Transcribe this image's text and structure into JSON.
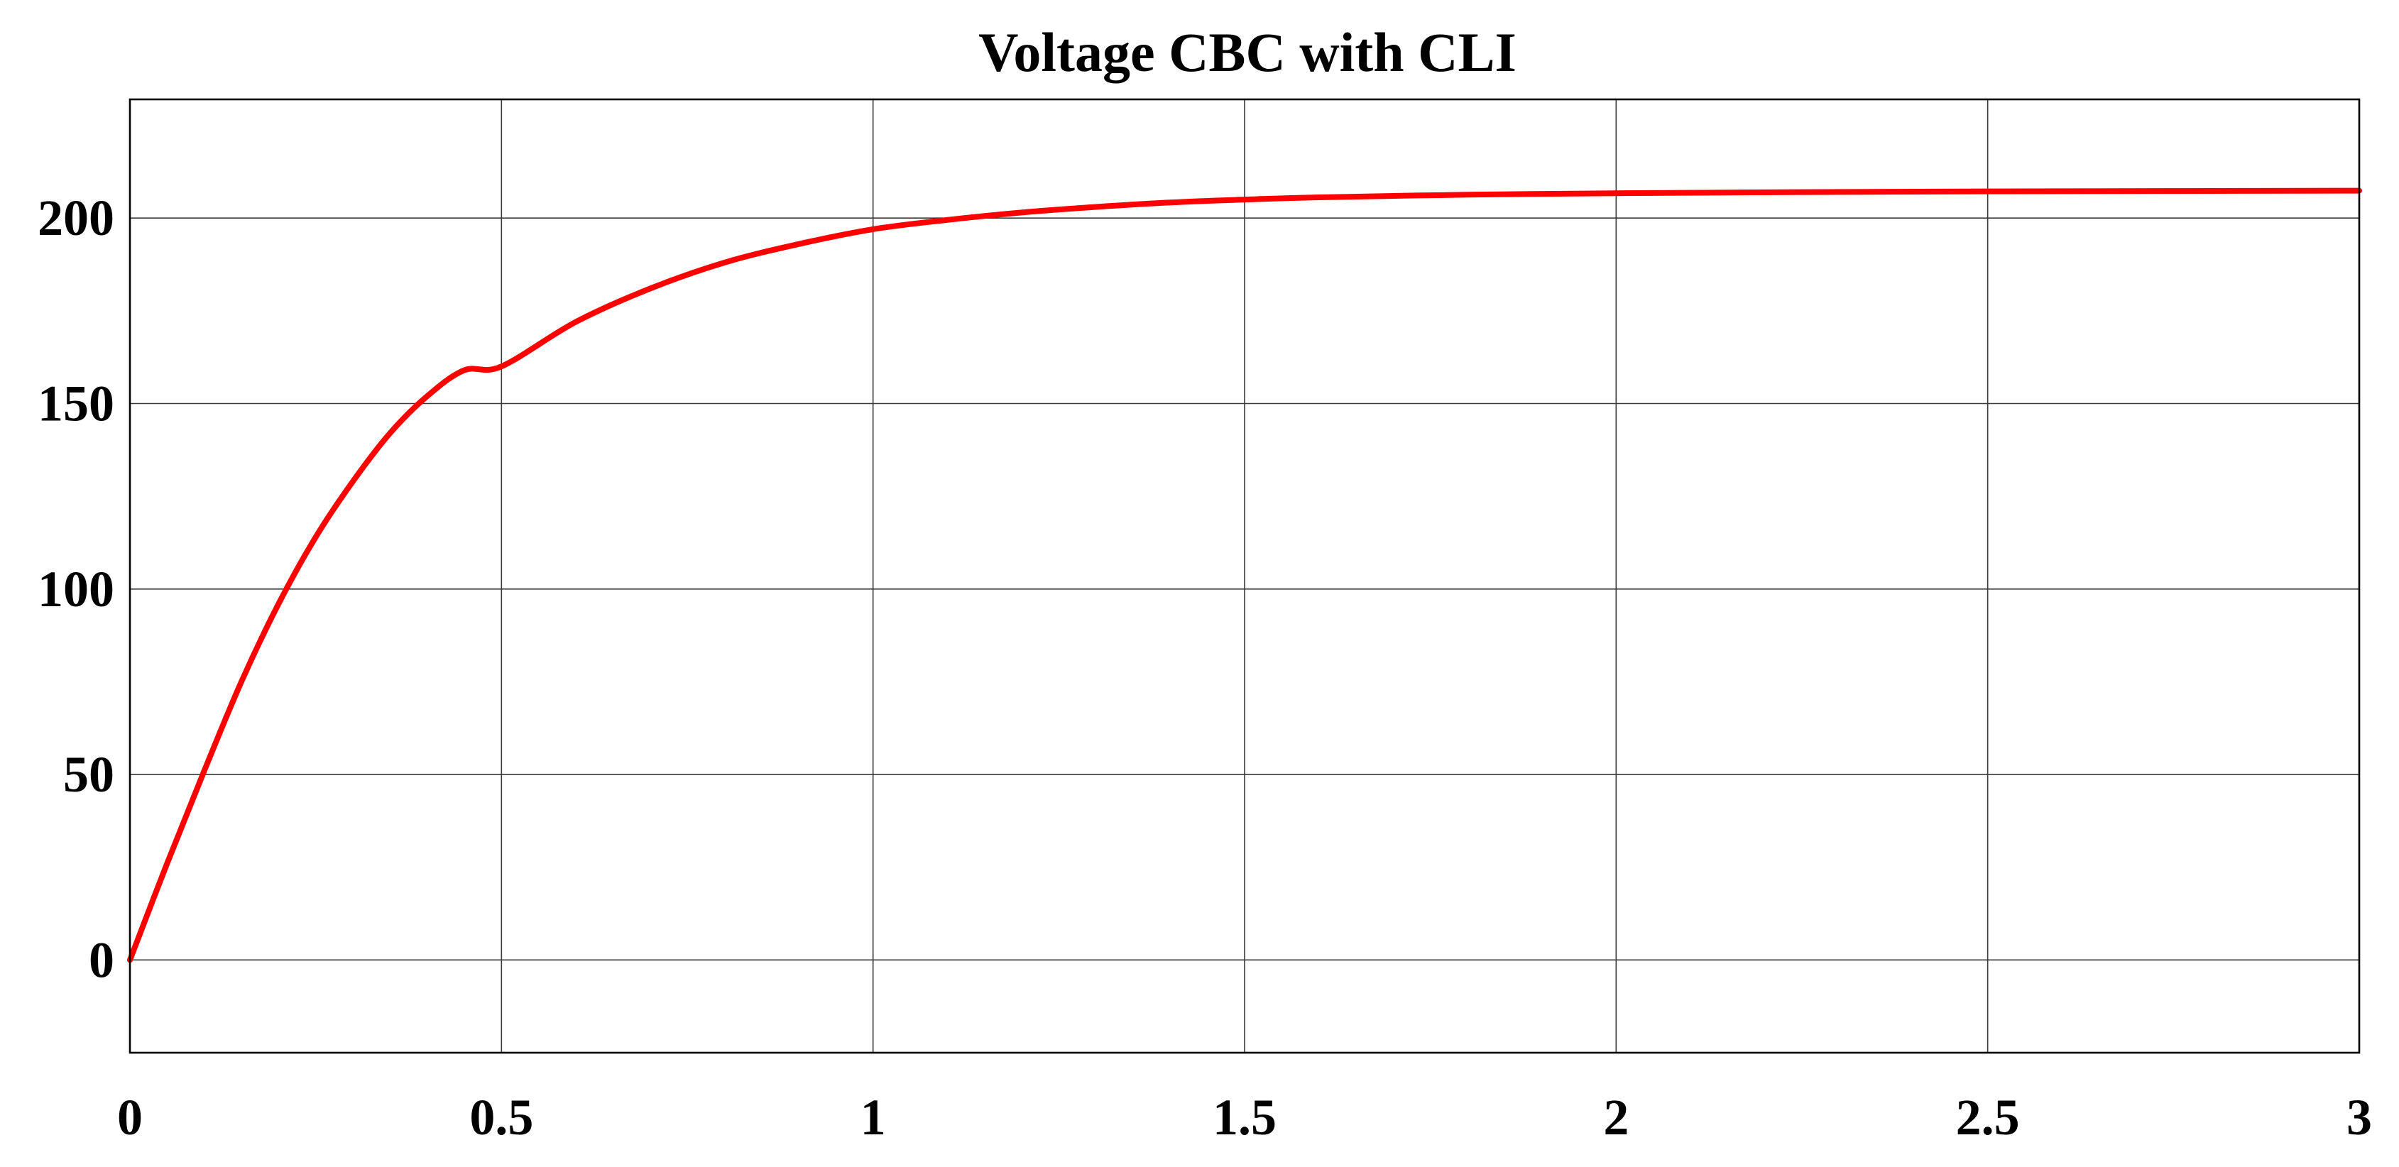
{
  "chart_data": {
    "type": "line",
    "title": "Voltage CBC with CLI",
    "xlabel": "",
    "ylabel": "",
    "xlim": [
      0,
      3
    ],
    "ylim": [
      -25,
      232
    ],
    "grid": true,
    "legend": "none",
    "x_ticks": [
      0,
      0.5,
      1,
      1.5,
      2,
      2.5,
      3
    ],
    "x_tick_labels": [
      "0",
      "0.5",
      "1",
      "1.5",
      "2",
      "2.5",
      "3"
    ],
    "y_ticks": [
      0,
      50,
      100,
      150,
      200
    ],
    "y_tick_labels": [
      "0",
      "50",
      "100",
      "150",
      "200"
    ],
    "colors": {
      "series": "#ff0000",
      "grid": "#3a3a3a",
      "axes": "#000000"
    },
    "series": [
      {
        "color": "#ff0000",
        "x": [
          0,
          0.05,
          0.1,
          0.15,
          0.2,
          0.25,
          0.3,
          0.35,
          0.4,
          0.45,
          0.5,
          0.6,
          0.7,
          0.8,
          0.9,
          1.0,
          1.1,
          1.2,
          1.3,
          1.4,
          1.5,
          1.6,
          1.8,
          2.0,
          2.25,
          2.5,
          2.75,
          3.0
        ],
        "y": [
          0,
          26,
          51,
          75,
          96,
          114,
          129,
          142,
          152,
          159,
          160,
          172,
          181,
          188,
          193,
          197,
          199.5,
          201.5,
          203,
          204.2,
          205,
          205.6,
          206.3,
          206.7,
          207,
          207.2,
          207.3,
          207.4
        ]
      }
    ]
  }
}
